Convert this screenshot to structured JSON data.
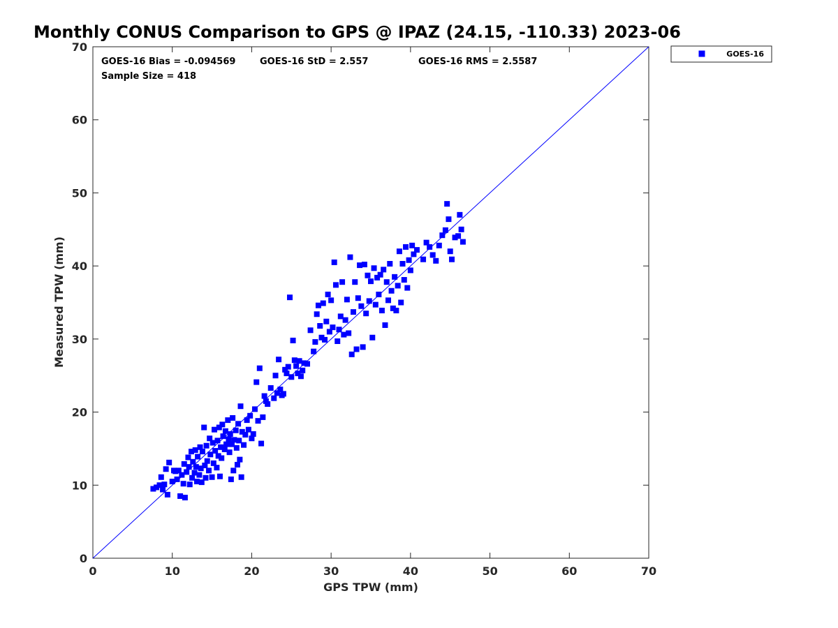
{
  "chart_data": {
    "type": "scatter",
    "title": "Monthly CONUS Comparison to GPS @ IPAZ (24.15, -110.33) 2023-06",
    "xlabel": "GPS TPW (mm)",
    "ylabel": "Measured TPW (mm)",
    "xlim": [
      0,
      70
    ],
    "ylim": [
      0,
      70
    ],
    "xticks": [
      "0",
      "10",
      "20",
      "30",
      "40",
      "50",
      "60",
      "70"
    ],
    "yticks": [
      "0",
      "10",
      "20",
      "30",
      "40",
      "50",
      "60",
      "70"
    ],
    "grid": false,
    "legend_position": "outside-top-right",
    "stats": {
      "bias": "GOES-16 Bias = -0.094569",
      "std": "GOES-16 StD = 2.557",
      "rms": "GOES-16 RMS = 2.5587",
      "sample": "Sample Size = 418"
    },
    "reference_line": {
      "name": "1:1 line",
      "x": [
        0,
        70
      ],
      "y": [
        0,
        70
      ],
      "color": "#0000ff"
    },
    "series": [
      {
        "name": "GOES-16",
        "marker": "square",
        "color": "#0000ff",
        "points": [
          [
            7.6,
            9.5
          ],
          [
            8.0,
            9.7
          ],
          [
            8.4,
            10.0
          ],
          [
            8.6,
            11.1
          ],
          [
            8.8,
            9.4
          ],
          [
            9.0,
            10.1
          ],
          [
            9.2,
            12.2
          ],
          [
            9.4,
            8.7
          ],
          [
            9.6,
            13.1
          ],
          [
            10.0,
            10.5
          ],
          [
            10.2,
            12.0
          ],
          [
            10.4,
            11.9
          ],
          [
            10.6,
            10.8
          ],
          [
            10.8,
            12.0
          ],
          [
            11.0,
            8.5
          ],
          [
            11.2,
            11.4
          ],
          [
            11.4,
            10.2
          ],
          [
            11.5,
            12.9
          ],
          [
            11.6,
            8.3
          ],
          [
            11.8,
            11.8
          ],
          [
            12.0,
            13.8
          ],
          [
            12.1,
            12.5
          ],
          [
            12.2,
            10.1
          ],
          [
            12.4,
            14.6
          ],
          [
            12.5,
            11.0
          ],
          [
            12.6,
            13.2
          ],
          [
            12.8,
            11.7
          ],
          [
            12.9,
            14.8
          ],
          [
            13.0,
            12.5
          ],
          [
            13.1,
            10.5
          ],
          [
            13.2,
            13.9
          ],
          [
            13.4,
            11.4
          ],
          [
            13.5,
            15.2
          ],
          [
            13.6,
            12.3
          ],
          [
            13.7,
            10.4
          ],
          [
            13.8,
            14.6
          ],
          [
            14.0,
            17.9
          ],
          [
            14.1,
            12.7
          ],
          [
            14.2,
            11.0
          ],
          [
            14.3,
            15.4
          ],
          [
            14.4,
            13.3
          ],
          [
            14.6,
            12.0
          ],
          [
            14.7,
            16.4
          ],
          [
            14.8,
            14.2
          ],
          [
            15.0,
            11.1
          ],
          [
            15.1,
            15.8
          ],
          [
            15.2,
            13.0
          ],
          [
            15.3,
            17.6
          ],
          [
            15.4,
            14.7
          ],
          [
            15.6,
            12.4
          ],
          [
            15.7,
            16.1
          ],
          [
            15.8,
            14.0
          ],
          [
            15.9,
            17.9
          ],
          [
            16.0,
            11.2
          ],
          [
            16.1,
            15.2
          ],
          [
            16.2,
            13.7
          ],
          [
            16.3,
            18.3
          ],
          [
            16.4,
            16.7
          ],
          [
            16.6,
            14.9
          ],
          [
            16.7,
            17.4
          ],
          [
            16.8,
            15.6
          ],
          [
            17.0,
            18.9
          ],
          [
            17.1,
            16.3
          ],
          [
            17.2,
            14.5
          ],
          [
            17.3,
            17.0
          ],
          [
            17.4,
            10.8
          ],
          [
            17.5,
            15.6
          ],
          [
            17.6,
            19.2
          ],
          [
            17.7,
            12.0
          ],
          [
            17.8,
            16.2
          ],
          [
            18.0,
            17.5
          ],
          [
            18.1,
            15.1
          ],
          [
            18.2,
            12.8
          ],
          [
            18.3,
            18.4
          ],
          [
            18.4,
            16.1
          ],
          [
            18.5,
            13.5
          ],
          [
            18.6,
            20.8
          ],
          [
            18.7,
            11.1
          ],
          [
            18.8,
            17.3
          ],
          [
            19.0,
            15.5
          ],
          [
            19.2,
            16.9
          ],
          [
            19.4,
            18.9
          ],
          [
            19.6,
            17.6
          ],
          [
            19.8,
            19.5
          ],
          [
            20.0,
            16.4
          ],
          [
            20.2,
            17.0
          ],
          [
            20.4,
            20.4
          ],
          [
            20.6,
            24.1
          ],
          [
            20.8,
            18.8
          ],
          [
            21.0,
            26.0
          ],
          [
            21.2,
            15.7
          ],
          [
            21.4,
            19.3
          ],
          [
            21.6,
            22.2
          ],
          [
            21.8,
            21.5
          ],
          [
            22.0,
            21.1
          ],
          [
            22.4,
            23.3
          ],
          [
            22.8,
            21.9
          ],
          [
            23.0,
            25.0
          ],
          [
            23.2,
            22.6
          ],
          [
            23.4,
            27.2
          ],
          [
            23.6,
            23.1
          ],
          [
            23.8,
            22.3
          ],
          [
            24.0,
            22.5
          ],
          [
            24.2,
            25.8
          ],
          [
            24.4,
            25.3
          ],
          [
            24.6,
            26.2
          ],
          [
            24.8,
            35.7
          ],
          [
            25.0,
            24.8
          ],
          [
            25.2,
            29.8
          ],
          [
            25.4,
            27.1
          ],
          [
            25.6,
            26.3
          ],
          [
            25.8,
            25.3
          ],
          [
            26.0,
            27.0
          ],
          [
            26.2,
            24.9
          ],
          [
            26.4,
            25.7
          ],
          [
            26.6,
            26.7
          ],
          [
            27.0,
            26.6
          ],
          [
            27.4,
            31.2
          ],
          [
            27.8,
            28.3
          ],
          [
            28.0,
            29.6
          ],
          [
            28.2,
            33.4
          ],
          [
            28.4,
            34.6
          ],
          [
            28.6,
            31.8
          ],
          [
            28.8,
            30.2
          ],
          [
            29.0,
            34.9
          ],
          [
            29.2,
            29.9
          ],
          [
            29.4,
            32.4
          ],
          [
            29.6,
            36.1
          ],
          [
            29.8,
            31.0
          ],
          [
            30.0,
            35.3
          ],
          [
            30.2,
            31.6
          ],
          [
            30.4,
            40.5
          ],
          [
            30.6,
            37.4
          ],
          [
            30.8,
            29.7
          ],
          [
            31.0,
            31.3
          ],
          [
            31.2,
            33.1
          ],
          [
            31.4,
            37.8
          ],
          [
            31.6,
            30.6
          ],
          [
            31.8,
            32.6
          ],
          [
            32.0,
            35.4
          ],
          [
            32.2,
            30.8
          ],
          [
            32.4,
            41.2
          ],
          [
            32.6,
            27.9
          ],
          [
            32.8,
            33.7
          ],
          [
            33.0,
            37.8
          ],
          [
            33.2,
            28.6
          ],
          [
            33.4,
            35.6
          ],
          [
            33.6,
            40.1
          ],
          [
            33.8,
            34.5
          ],
          [
            34.0,
            28.9
          ],
          [
            34.2,
            40.2
          ],
          [
            34.4,
            33.5
          ],
          [
            34.6,
            38.7
          ],
          [
            34.8,
            35.2
          ],
          [
            35.0,
            37.9
          ],
          [
            35.2,
            30.2
          ],
          [
            35.4,
            39.7
          ],
          [
            35.6,
            34.7
          ],
          [
            35.8,
            38.4
          ],
          [
            36.0,
            36.1
          ],
          [
            36.2,
            38.8
          ],
          [
            36.4,
            33.9
          ],
          [
            36.6,
            39.5
          ],
          [
            36.8,
            31.9
          ],
          [
            37.0,
            37.8
          ],
          [
            37.2,
            35.3
          ],
          [
            37.4,
            40.3
          ],
          [
            37.6,
            36.6
          ],
          [
            37.8,
            34.2
          ],
          [
            38.0,
            38.5
          ],
          [
            38.2,
            33.9
          ],
          [
            38.4,
            37.3
          ],
          [
            38.6,
            42.0
          ],
          [
            38.8,
            35.0
          ],
          [
            39.0,
            40.3
          ],
          [
            39.2,
            38.1
          ],
          [
            39.4,
            42.6
          ],
          [
            39.6,
            37.0
          ],
          [
            39.8,
            40.8
          ],
          [
            40.0,
            39.4
          ],
          [
            40.2,
            42.8
          ],
          [
            40.4,
            41.6
          ],
          [
            40.8,
            42.2
          ],
          [
            41.6,
            40.9
          ],
          [
            42.0,
            43.2
          ],
          [
            42.4,
            42.6
          ],
          [
            42.8,
            41.5
          ],
          [
            43.2,
            40.7
          ],
          [
            43.6,
            42.8
          ],
          [
            44.0,
            44.2
          ],
          [
            44.4,
            44.9
          ],
          [
            44.6,
            48.5
          ],
          [
            44.8,
            46.4
          ],
          [
            45.0,
            42.0
          ],
          [
            45.2,
            40.9
          ],
          [
            45.6,
            43.9
          ],
          [
            46.0,
            44.1
          ],
          [
            46.2,
            47.0
          ],
          [
            46.4,
            45.0
          ],
          [
            46.6,
            43.3
          ]
        ]
      }
    ]
  }
}
